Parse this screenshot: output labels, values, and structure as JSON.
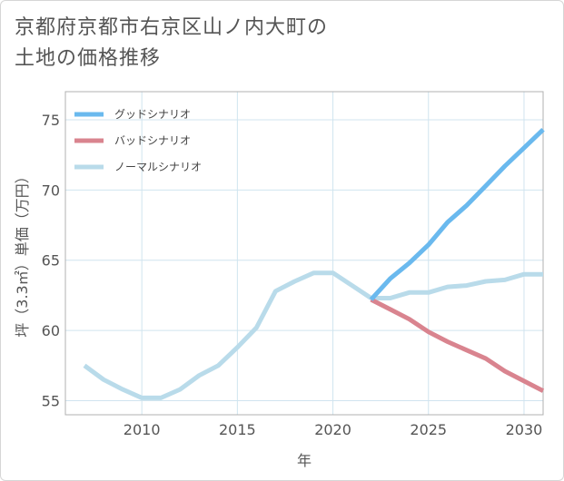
{
  "title": {
    "line1": "京都府京都市右京区山ノ内大町の",
    "line2": "土地の価格推移"
  },
  "colors": {
    "good": "#6ab9ee",
    "bad": "#d9848f",
    "normal": "#b9dbea",
    "grid": "#d0e4ef"
  },
  "chart_data": {
    "type": "line",
    "title": "京都府京都市右京区山ノ内大町の土地の価格推移",
    "xlabel": "年",
    "ylabel": "坪（3.3㎡）単価（万円）",
    "xlim": [
      2006,
      2031
    ],
    "ylim": [
      54,
      77
    ],
    "xticks": [
      2010,
      2015,
      2020,
      2025,
      2030
    ],
    "yticks": [
      55,
      60,
      65,
      70,
      75
    ],
    "grid": true,
    "legend_position": "top-left",
    "series": [
      {
        "name": "グッドシナリオ",
        "color_key": "good",
        "x": [
          2022,
          2023,
          2024,
          2025,
          2026,
          2027,
          2028,
          2029,
          2030,
          2031
        ],
        "values": [
          62.2,
          63.7,
          64.8,
          66.1,
          67.7,
          68.9,
          70.3,
          71.7,
          73.0,
          74.3
        ]
      },
      {
        "name": "バッドシナリオ",
        "color_key": "bad",
        "x": [
          2022,
          2023,
          2024,
          2025,
          2026,
          2027,
          2028,
          2029,
          2030,
          2031
        ],
        "values": [
          62.2,
          61.5,
          60.8,
          59.9,
          59.2,
          58.6,
          58.0,
          57.1,
          56.4,
          55.7
        ]
      },
      {
        "name": "ノーマルシナリオ",
        "color_key": "normal",
        "x": [
          2007,
          2008,
          2009,
          2010,
          2011,
          2012,
          2013,
          2014,
          2015,
          2016,
          2017,
          2018,
          2019,
          2020,
          2021,
          2022,
          2023,
          2024,
          2025,
          2026,
          2027,
          2028,
          2029,
          2030,
          2031
        ],
        "values": [
          57.5,
          56.5,
          55.8,
          55.2,
          55.2,
          55.8,
          56.8,
          57.5,
          58.8,
          60.2,
          62.8,
          63.5,
          64.1,
          64.1,
          63.2,
          62.3,
          62.3,
          62.7,
          62.7,
          63.1,
          63.2,
          63.5,
          63.6,
          64.0,
          64.0
        ]
      }
    ]
  }
}
